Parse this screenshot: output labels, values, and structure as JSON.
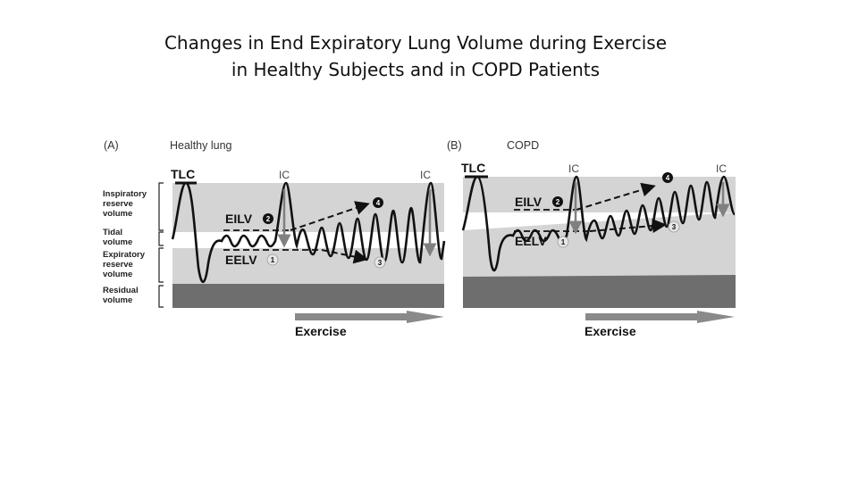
{
  "title": {
    "line1": "Changes in End Expiratory Lung Volume during Exercise",
    "line2": "in Healthy Subjects and in COPD Patients"
  },
  "panels": [
    {
      "tag": "(A)",
      "name": "Healthy lung",
      "tlc": "TLC",
      "ic": "IC",
      "eilv": "EILV",
      "eelv": "EELV",
      "markers": [
        "1",
        "2",
        "3",
        "4"
      ],
      "exercise": "Exercise"
    },
    {
      "tag": "(B)",
      "name": "COPD",
      "tlc": "TLC",
      "ic": "IC",
      "eilv": "EILV",
      "eelv": "EELV",
      "markers": [
        "1",
        "2",
        "3",
        "4"
      ],
      "exercise": "Exercise"
    }
  ],
  "volume_labels": {
    "irv": [
      "Inspiratory",
      "reserve",
      "volume"
    ],
    "tidal": [
      "Tidal",
      "volume"
    ],
    "erv": [
      "Expiratory",
      "reserve",
      "volume"
    ],
    "rv": [
      "Residual",
      "volume"
    ]
  },
  "colors": {
    "light_band": "#d4d4d4",
    "dark_band": "#6e6e6e",
    "trace": "#111111",
    "arrow": "#808080"
  }
}
